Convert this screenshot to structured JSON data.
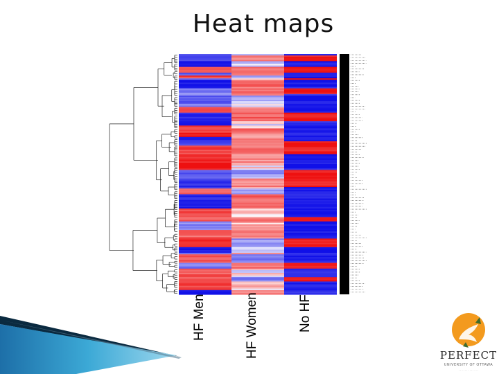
{
  "slide": {
    "title": "Heat maps"
  },
  "chart_data": {
    "type": "heatmap",
    "columns": [
      "HF Men",
      "HF Women",
      "No HF"
    ],
    "row_count": 168,
    "value_range": [
      -1,
      1
    ],
    "color_scale": {
      "low": "#1010e8",
      "mid": "#ffffff",
      "high": "#ee1010"
    },
    "row_labels_legible": false,
    "dendrogram": "rows"
  },
  "logo": {
    "name": "PERFECT",
    "tagline": "UNIVERSITY OF OTTAWA"
  },
  "colors": {
    "swoosh_dark": "#0a2a40",
    "swoosh_light": "#3ca9d6",
    "logo_orange": "#f39a1e"
  }
}
